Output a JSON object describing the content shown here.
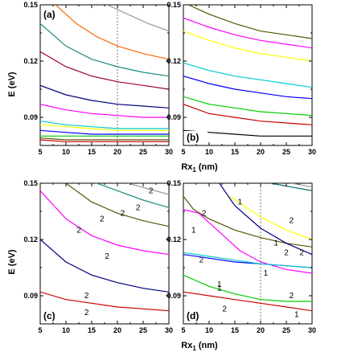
{
  "figure": {
    "y_axis_label": "E (eV)",
    "x_axis_label": "Rx",
    "x_axis_label_sub": "1",
    "x_axis_label_unit": " (nm)"
  },
  "chart_data": [
    {
      "panel": "(a)",
      "type": "line",
      "xlim": [
        5,
        30
      ],
      "ylim": [
        0.075,
        0.15
      ],
      "xticks": [
        "5",
        "10",
        "15",
        "20",
        "25",
        "30"
      ],
      "yticks": [
        "0.09",
        "0.12",
        "0.15"
      ],
      "show_x_tick_labels": true,
      "show_y_tick_labels": true,
      "vline_x": 20,
      "series": [
        {
          "color": "#999999",
          "x": [
            18,
            22,
            26,
            30
          ],
          "y": [
            0.15,
            0.145,
            0.14,
            0.136
          ]
        },
        {
          "color": "#ff6600",
          "x": [
            8,
            12,
            16,
            20,
            25,
            30
          ],
          "y": [
            0.15,
            0.14,
            0.133,
            0.128,
            0.124,
            0.121
          ]
        },
        {
          "color": "#1a8c80",
          "x": [
            5,
            10,
            15,
            20,
            25,
            30
          ],
          "y": [
            0.14,
            0.128,
            0.121,
            0.117,
            0.114,
            0.112
          ]
        },
        {
          "color": "#990033",
          "x": [
            5,
            10,
            15,
            20,
            25,
            30
          ],
          "y": [
            0.125,
            0.117,
            0.112,
            0.109,
            0.107,
            0.105
          ]
        },
        {
          "color": "#000080",
          "x": [
            5,
            10,
            15,
            20,
            25,
            30
          ],
          "y": [
            0.107,
            0.102,
            0.099,
            0.097,
            0.096,
            0.095
          ]
        },
        {
          "color": "#ff00ff",
          "x": [
            5,
            10,
            15,
            20,
            25,
            30
          ],
          "y": [
            0.097,
            0.094,
            0.092,
            0.091,
            0.09,
            0.09
          ]
        },
        {
          "color": "#00cccc",
          "x": [
            5,
            10,
            15,
            20,
            25,
            30
          ],
          "y": [
            0.088,
            0.086,
            0.085,
            0.084,
            0.084,
            0.084
          ]
        },
        {
          "color": "#ffff00",
          "x": [
            5,
            10,
            15,
            20,
            25,
            30
          ],
          "y": [
            0.086,
            0.085,
            0.084,
            0.083,
            0.083,
            0.083
          ]
        },
        {
          "color": "#0000ff",
          "x": [
            5,
            10,
            15,
            20,
            25,
            30
          ],
          "y": [
            0.083,
            0.082,
            0.081,
            0.081,
            0.081,
            0.081
          ]
        },
        {
          "color": "#00cc00",
          "x": [
            5,
            10,
            15,
            20,
            25,
            30
          ],
          "y": [
            0.08,
            0.08,
            0.08,
            0.08,
            0.08,
            0.08
          ]
        },
        {
          "color": "#555500",
          "x": [
            5,
            10,
            15,
            20,
            25,
            30
          ],
          "y": [
            0.079,
            0.078,
            0.078,
            0.078,
            0.078,
            0.078
          ]
        },
        {
          "color": "#cc0000",
          "x": [
            5,
            10,
            15,
            20,
            25,
            30
          ],
          "y": [
            0.078,
            0.077,
            0.077,
            0.077,
            0.077,
            0.077
          ]
        }
      ],
      "labels": []
    },
    {
      "panel": "(b)",
      "type": "line",
      "xlim": [
        5,
        30
      ],
      "ylim": [
        0.075,
        0.15
      ],
      "xticks": [
        "5",
        "10",
        "15",
        "20",
        "25",
        "30"
      ],
      "yticks": [
        "0.09",
        "0.12",
        "0.15"
      ],
      "show_x_tick_labels": true,
      "show_y_tick_labels": true,
      "vline_x": null,
      "series": [
        {
          "color": "#555500",
          "x": [
            6,
            10,
            15,
            20,
            25,
            30
          ],
          "y": [
            0.15,
            0.145,
            0.14,
            0.136,
            0.134,
            0.132
          ]
        },
        {
          "color": "#ff00ff",
          "x": [
            5,
            10,
            15,
            20,
            25,
            30
          ],
          "y": [
            0.143,
            0.138,
            0.134,
            0.131,
            0.129,
            0.127
          ]
        },
        {
          "color": "#ffff00",
          "x": [
            5,
            10,
            15,
            20,
            25,
            30
          ],
          "y": [
            0.136,
            0.131,
            0.127,
            0.124,
            0.122,
            0.12
          ]
        },
        {
          "color": "#00cccc",
          "x": [
            5,
            10,
            15,
            20,
            25,
            30
          ],
          "y": [
            0.119,
            0.115,
            0.112,
            0.11,
            0.108,
            0.106
          ]
        },
        {
          "color": "#0000ff",
          "x": [
            5,
            10,
            15,
            20,
            25,
            30
          ],
          "y": [
            0.112,
            0.108,
            0.105,
            0.103,
            0.101,
            0.1
          ]
        },
        {
          "color": "#00cc00",
          "x": [
            5,
            10,
            15,
            20,
            25,
            30
          ],
          "y": [
            0.101,
            0.097,
            0.095,
            0.093,
            0.092,
            0.091
          ]
        },
        {
          "color": "#cc0000",
          "x": [
            5,
            10,
            15,
            20,
            25,
            30
          ],
          "y": [
            0.097,
            0.092,
            0.09,
            0.088,
            0.087,
            0.086
          ]
        },
        {
          "color": "#000000",
          "x": [
            5,
            10,
            15,
            20,
            25,
            30
          ],
          "y": [
            0.083,
            0.082,
            0.081,
            0.08,
            0.08,
            0.08
          ]
        }
      ],
      "labels": []
    },
    {
      "panel": "(c)",
      "type": "line",
      "xlim": [
        5,
        30
      ],
      "ylim": [
        0.075,
        0.15
      ],
      "xticks": [
        "5",
        "10",
        "15",
        "20",
        "25",
        "30"
      ],
      "yticks": [
        "0.09",
        "0.12",
        "0.15"
      ],
      "show_x_tick_labels": true,
      "show_y_tick_labels": true,
      "vline_x": null,
      "series": [
        {
          "color": "#1a8c80",
          "x": [
            16,
            20,
            25,
            30
          ],
          "y": [
            0.15,
            0.146,
            0.141,
            0.137
          ]
        },
        {
          "color": "#999999",
          "x": [
            22,
            26,
            30
          ],
          "y": [
            0.15,
            0.147,
            0.144
          ]
        },
        {
          "color": "#555500",
          "x": [
            10,
            15,
            20,
            25,
            30
          ],
          "y": [
            0.15,
            0.14,
            0.134,
            0.13,
            0.127
          ]
        },
        {
          "color": "#ff00ff",
          "x": [
            5,
            10,
            15,
            20,
            25,
            30
          ],
          "y": [
            0.146,
            0.131,
            0.122,
            0.117,
            0.114,
            0.112
          ]
        },
        {
          "color": "#000080",
          "x": [
            5,
            10,
            15,
            20,
            25,
            30
          ],
          "y": [
            0.12,
            0.108,
            0.101,
            0.097,
            0.094,
            0.092
          ]
        },
        {
          "color": "#cc0000",
          "x": [
            5,
            10,
            15,
            20,
            25,
            30
          ],
          "y": [
            0.092,
            0.088,
            0.086,
            0.084,
            0.083,
            0.082
          ]
        }
      ],
      "labels": [
        {
          "text": "2",
          "x": 26.5,
          "y": 0.146
        },
        {
          "text": "2",
          "x": 24,
          "y": 0.137
        },
        {
          "text": "2",
          "x": 21,
          "y": 0.134
        },
        {
          "text": "2",
          "x": 17,
          "y": 0.131
        },
        {
          "text": "2",
          "x": 12.5,
          "y": 0.125
        },
        {
          "text": "2",
          "x": 18,
          "y": 0.111
        },
        {
          "text": "2",
          "x": 14,
          "y": 0.09
        },
        {
          "text": "2",
          "x": 14,
          "y": 0.081
        }
      ]
    },
    {
      "panel": "(d)",
      "type": "line",
      "xlim": [
        5,
        30
      ],
      "ylim": [
        0.075,
        0.15
      ],
      "xticks": [
        "5",
        "10",
        "15",
        "20",
        "25",
        "30"
      ],
      "yticks": [
        "0.09",
        "0.12",
        "0.15"
      ],
      "show_x_tick_labels": true,
      "show_y_tick_labels": true,
      "vline_x": 20,
      "series": [
        {
          "color": "#555500",
          "x": [
            5,
            7,
            10,
            15,
            20,
            25,
            30
          ],
          "y": [
            0.143,
            0.136,
            0.131,
            0.125,
            0.121,
            0.118,
            0.116
          ]
        },
        {
          "color": "#ffff00",
          "x": [
            14,
            20,
            25,
            30
          ],
          "y": [
            0.143,
            0.132,
            0.125,
            0.12
          ]
        },
        {
          "color": "#ff00ff",
          "x": [
            5,
            8,
            12,
            16,
            20,
            25,
            30
          ],
          "y": [
            0.136,
            0.134,
            0.124,
            0.114,
            0.108,
            0.104,
            0.102
          ]
        },
        {
          "color": "#000080",
          "x": [
            12,
            15,
            20,
            25,
            30
          ],
          "y": [
            0.15,
            0.138,
            0.126,
            0.118,
            0.112
          ]
        },
        {
          "color": "#0000ff",
          "x": [
            5,
            10,
            15,
            20,
            25,
            30
          ],
          "y": [
            0.112,
            0.11,
            0.108,
            0.107,
            0.106,
            0.105
          ]
        },
        {
          "color": "#00cccc",
          "x": [
            5,
            10,
            15,
            20,
            25,
            30
          ],
          "y": [
            0.113,
            0.111,
            0.109,
            0.107,
            0.106,
            0.105
          ]
        },
        {
          "color": "#00cc00",
          "x": [
            5,
            10,
            15,
            20,
            25,
            30
          ],
          "y": [
            0.101,
            0.095,
            0.091,
            0.088,
            0.087,
            0.087
          ]
        },
        {
          "color": "#cc0000",
          "x": [
            5,
            10,
            15,
            20,
            25,
            30
          ],
          "y": [
            0.092,
            0.09,
            0.088,
            0.086,
            0.084,
            0.082
          ]
        },
        {
          "color": "#006666",
          "x": [
            22,
            26,
            30
          ],
          "y": [
            0.15,
            0.148,
            0.146
          ]
        },
        {
          "color": "#999999",
          "x": [
            26,
            28,
            30
          ],
          "y": [
            0.15,
            0.149,
            0.148
          ]
        }
      ],
      "labels": [
        {
          "text": "1",
          "x": 16,
          "y": 0.14
        },
        {
          "text": "2",
          "x": 9,
          "y": 0.134
        },
        {
          "text": "1",
          "x": 7,
          "y": 0.125
        },
        {
          "text": "2",
          "x": 26,
          "y": 0.13
        },
        {
          "text": "1",
          "x": 23,
          "y": 0.118
        },
        {
          "text": "2",
          "x": 25,
          "y": 0.113
        },
        {
          "text": "2",
          "x": 28,
          "y": 0.113
        },
        {
          "text": "2",
          "x": 8.5,
          "y": 0.109
        },
        {
          "text": "1",
          "x": 21,
          "y": 0.102
        },
        {
          "text": "1",
          "x": 12,
          "y": 0.096
        },
        {
          "text": "1",
          "x": 12,
          "y": 0.094
        },
        {
          "text": "2",
          "x": 26,
          "y": 0.09
        },
        {
          "text": "2",
          "x": 13,
          "y": 0.083
        },
        {
          "text": "1",
          "x": 27,
          "y": 0.08
        }
      ]
    }
  ]
}
